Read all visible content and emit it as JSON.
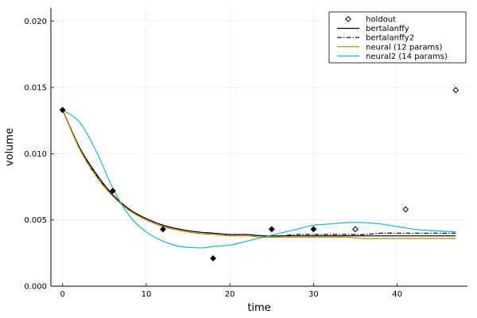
{
  "chart_data": {
    "type": "line",
    "xlabel": "time",
    "ylabel": "volume",
    "xlim": [
      -1.4,
      48.4
    ],
    "ylim": [
      0,
      0.021
    ],
    "xticks": [
      0,
      10,
      20,
      30,
      40
    ],
    "yticks": [
      0,
      0.005,
      0.01,
      0.015,
      0.02
    ],
    "xtick_labels": [
      "0",
      "10",
      "20",
      "30",
      "40"
    ],
    "ytick_labels": [
      "0.000",
      "0.005",
      "0.010",
      "0.015",
      "0.020"
    ],
    "grid": true,
    "legend_position": "top-right",
    "training_points": {
      "name": "",
      "marker": "filled-diamond",
      "x": [
        0,
        6,
        12,
        18,
        25,
        30
      ],
      "y": [
        0.0133,
        0.0072,
        0.0043,
        0.0021,
        0.0043,
        0.0043
      ]
    },
    "holdout_points": {
      "name": "holdout",
      "marker": "open-diamond",
      "x": [
        35,
        41,
        47
      ],
      "y": [
        0.0043,
        0.0058,
        0.0148
      ]
    },
    "series": [
      {
        "name": "bertalanffy",
        "color": "#000000",
        "style": "solid",
        "x": [
          0,
          2,
          4,
          6,
          8,
          10,
          12,
          14,
          16,
          18,
          20,
          22,
          24,
          26,
          28,
          30,
          32,
          34,
          36,
          38,
          40,
          42,
          44,
          47
        ],
        "y": [
          0.0133,
          0.0105,
          0.0085,
          0.0069,
          0.0058,
          0.0051,
          0.0046,
          0.0043,
          0.0041,
          0.004,
          0.0039,
          0.0039,
          0.0038,
          0.0038,
          0.0038,
          0.0038,
          0.0038,
          0.0038,
          0.0038,
          0.0038,
          0.0038,
          0.0038,
          0.0038,
          0.0038
        ]
      },
      {
        "name": "bertalanffy2",
        "color": "#000000",
        "style": "dashdot",
        "x": [
          0,
          2,
          4,
          6,
          8,
          10,
          12,
          14,
          16,
          18,
          20,
          22,
          24,
          26,
          28,
          30,
          32,
          34,
          36,
          38,
          40,
          42,
          44,
          47
        ],
        "y": [
          0.0133,
          0.0105,
          0.0084,
          0.0069,
          0.0058,
          0.0051,
          0.0046,
          0.0043,
          0.0041,
          0.004,
          0.0039,
          0.0039,
          0.0038,
          0.0038,
          0.0039,
          0.0039,
          0.0039,
          0.0039,
          0.0039,
          0.004,
          0.004,
          0.004,
          0.004,
          0.004
        ]
      },
      {
        "name": "neural (12 params)",
        "color": "#b8860b",
        "style": "solid",
        "x": [
          0,
          2,
          4,
          6,
          8,
          10,
          12,
          14,
          16,
          18,
          20,
          22,
          24,
          26,
          28,
          30,
          32,
          34,
          36,
          38,
          40,
          42,
          44,
          47
        ],
        "y": [
          0.0133,
          0.0104,
          0.0083,
          0.0068,
          0.0057,
          0.005,
          0.0045,
          0.0042,
          0.004,
          0.0039,
          0.0038,
          0.0038,
          0.0037,
          0.0037,
          0.0037,
          0.0037,
          0.0037,
          0.0037,
          0.0036,
          0.0036,
          0.0036,
          0.0036,
          0.0036,
          0.0036
        ]
      },
      {
        "name": "neural2 (14 params)",
        "color": "#1fb5c0",
        "style": "solid",
        "x": [
          0,
          2,
          4,
          6,
          8,
          10,
          12,
          14,
          16,
          17,
          18,
          20,
          22,
          24,
          26,
          28,
          30,
          32,
          34,
          36,
          38,
          40,
          42,
          44,
          47
        ],
        "y": [
          0.0133,
          0.0124,
          0.0102,
          0.0074,
          0.0053,
          0.0041,
          0.0034,
          0.003,
          0.0029,
          0.0029,
          0.003,
          0.0031,
          0.0034,
          0.0037,
          0.004,
          0.0043,
          0.0046,
          0.0047,
          0.0048,
          0.0048,
          0.0047,
          0.0045,
          0.0043,
          0.0042,
          0.0041
        ]
      }
    ]
  }
}
